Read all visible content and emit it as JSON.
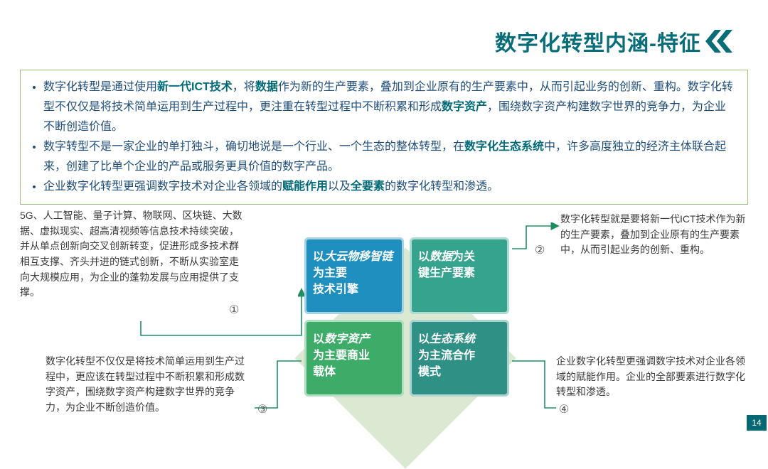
{
  "header": {
    "title": "数字化转型内涵-特征",
    "title_color": "#076d78",
    "chevron_color": "#076d78"
  },
  "bullets": {
    "text_color": "#1f4e79",
    "highlight_color": "#006a78",
    "border_color": "#9bbf7d",
    "items": [
      {
        "segments": [
          {
            "t": "数字化转型是通过使用"
          },
          {
            "t": "新一代ICT技术",
            "hl": true
          },
          {
            "t": "，将"
          },
          {
            "t": "数据",
            "hl": true
          },
          {
            "t": "作为新的生产要素，叠加到企业原有的生产要素中，从而引起业务的创新、重构。数字化转型不仅仅是将技术简单运用到生产过程中，更注重在转型过程中不断积累和形成"
          },
          {
            "t": "数字资产",
            "hl": true
          },
          {
            "t": "，围绕数字资产构建数字世界的竞争力，为企业不断创造价值。"
          }
        ]
      },
      {
        "segments": [
          {
            "t": "数字转型不是一家企业的单打独斗，确切地说是一个行业、一个生态的整体转型，在"
          },
          {
            "t": "数字化生态系统",
            "hl": true
          },
          {
            "t": "中，许多高度独立的经济主体联合起来，创建了比单个企业的产品或服务更具价值的数字产品。"
          }
        ]
      },
      {
        "segments": [
          {
            "t": "企业数字化转型更强调数字技术对企业各领域的"
          },
          {
            "t": "赋能作用",
            "hl": true
          },
          {
            "t": "以及"
          },
          {
            "t": "全要素",
            "hl": true
          },
          {
            "t": "的数字化转型和渗透。"
          }
        ]
      }
    ]
  },
  "diagram": {
    "diamond_bg_color": "#dbe8d2",
    "connector_color": "#1f8f63",
    "quadrants": [
      {
        "id": "q1",
        "color": "#1f8fbf",
        "line1": "以",
        "em": "大云物移智链",
        "line1b": "为主要",
        "line2": "技术引擎"
      },
      {
        "id": "q2",
        "color": "#36a38e",
        "line1": "以",
        "em": "数据",
        "line1b": "为关",
        "line2": "键生产要素"
      },
      {
        "id": "q3",
        "color": "#3eac69",
        "line1": "以",
        "em": "数字资产",
        "line1b": "",
        "line2": "为主要商业",
        "line3": "载体"
      },
      {
        "id": "q4",
        "color": "#2f9085",
        "line1": "以",
        "em": "生态系统",
        "line1b": "",
        "line2": "为主流合作",
        "line3": "模式"
      }
    ],
    "notes": {
      "n1": {
        "num": "①",
        "text": "5G、人工智能、量子计算、物联网、区块链、大数据、虚拟现实、超高清视频等信息技术持续突破，并从单点创新向交叉创新转变，促进形成多技术群相互支撑、齐头并进的链式创新，不断从实验室走向大规模应用，为企业的蓬勃发展与应用提供了支撑。"
      },
      "n2": {
        "num": "②",
        "text": "数字化转型就是要将新一代ICT技术作为新的生产要素，叠加到企业原有的生产要素中，从而引起业务的创新、重构。"
      },
      "n3": {
        "num": "③",
        "text": "数字化转型不仅仅是将技术简单运用到生产过程中，更应该在转型过程中不断积累和形成数字资产，围绕数字资产构建数字世界的竞争力，为企业不断创造价值。"
      },
      "n4": {
        "num": "④",
        "text": "企业数字化转型更强调数字技术对企业各领域的赋能作用。企业的全部要素进行数字化转型和渗透。"
      }
    }
  },
  "page_number": "14",
  "pg_bg": "#056973"
}
